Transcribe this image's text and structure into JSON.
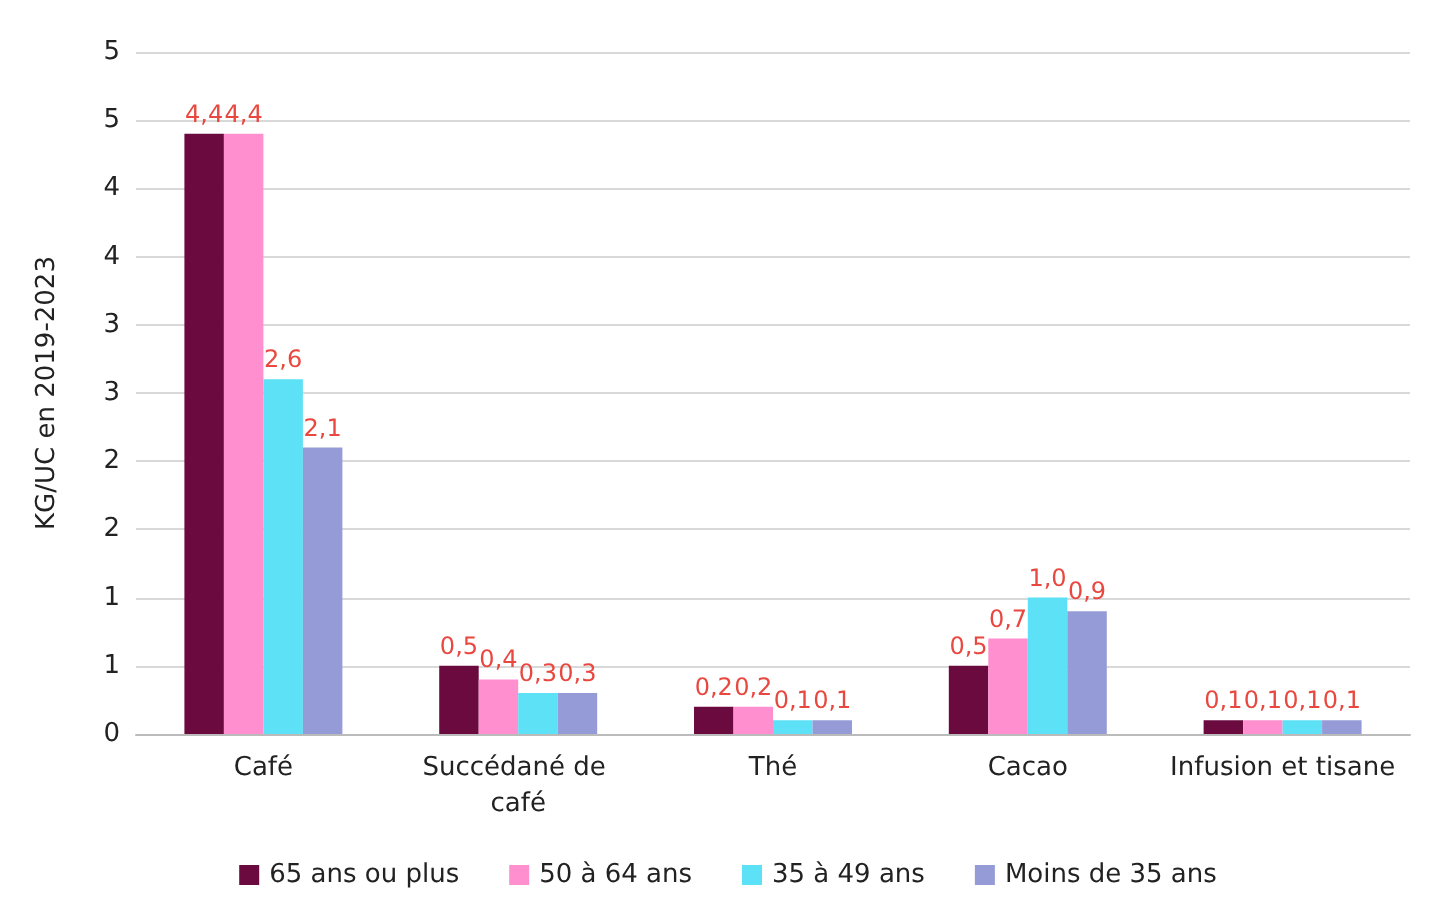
{
  "chart_data": {
    "type": "bar",
    "ylabel": "KG/UC en 2019-2023",
    "categories": [
      "Café",
      "Succédané de café",
      "Thé",
      "Cacao",
      "Infusion et tisane"
    ],
    "series": [
      {
        "name": "65 ans ou plus",
        "color": "#6b0a3f",
        "values": [
          4.4,
          0.5,
          0.2,
          0.5,
          0.1
        ],
        "value_labels": [
          "4,4",
          "0,5",
          "0,2",
          "0,5",
          "0,1"
        ]
      },
      {
        "name": "50 à 64 ans",
        "color": "#ff8fcf",
        "values": [
          4.4,
          0.4,
          0.2,
          0.7,
          0.1
        ],
        "value_labels": [
          "4,4",
          "0,4",
          "0,2",
          "0,7",
          "0,1"
        ]
      },
      {
        "name": "35 à 49 ans",
        "color": "#5ce1f6",
        "values": [
          2.6,
          0.3,
          0.1,
          1.0,
          0.1
        ],
        "value_labels": [
          "2,6",
          "0,3",
          "0,1",
          "1,0",
          "0,1"
        ]
      },
      {
        "name": "Moins de 35 ans",
        "color": "#959bd6",
        "values": [
          2.1,
          0.3,
          0.1,
          0.9,
          0.1
        ],
        "value_labels": [
          "2,1",
          "0,3",
          "0,1",
          "0,9",
          "0,1"
        ]
      }
    ],
    "ylim": [
      0,
      5
    ],
    "yticks": [
      0,
      {
        "value": 0.5,
        "label": "1"
      },
      1,
      {
        "value": 1.5,
        "label": "2"
      },
      2,
      {
        "value": 2.5,
        "label": "3"
      },
      3,
      {
        "value": 3.5,
        "label": "4"
      },
      4,
      {
        "value": 4.5,
        "label": "5"
      },
      5
    ],
    "grid": "y",
    "legend": "bottom"
  }
}
